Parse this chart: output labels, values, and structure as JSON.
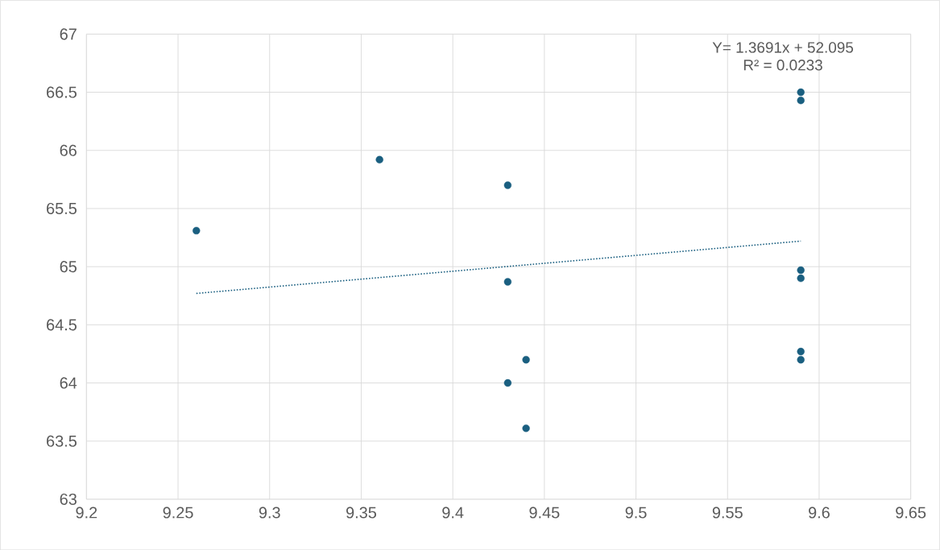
{
  "chart_data": {
    "type": "scatter",
    "xlim": [
      9.2,
      9.65
    ],
    "ylim": [
      63,
      67
    ],
    "xticks": [
      9.2,
      9.25,
      9.3,
      9.35,
      9.4,
      9.45,
      9.5,
      9.55,
      9.6,
      9.65
    ],
    "yticks": [
      63,
      63.5,
      64,
      64.5,
      65,
      65.5,
      66,
      66.5,
      67
    ],
    "grid": true,
    "marker": "circle",
    "annotations": [
      "Y= 1.3691x + 52.095",
      "R² = 0.0233"
    ],
    "series": [
      {
        "color": "#1a5f80",
        "x": [
          9.26,
          9.36,
          9.43,
          9.43,
          9.43,
          9.44,
          9.44,
          9.59,
          9.59,
          9.59,
          9.59,
          9.59,
          9.59
        ],
        "values": [
          65.31,
          65.92,
          65.7,
          64.87,
          64.0,
          64.2,
          63.61,
          66.5,
          66.43,
          64.97,
          64.9,
          64.27,
          64.2
        ]
      },
      {
        "type": "line",
        "color": "#1a5f80",
        "line_style": "dotted",
        "marker": "none",
        "x": [
          9.26,
          9.59
        ],
        "values": [
          64.77,
          65.22
        ]
      }
    ]
  }
}
